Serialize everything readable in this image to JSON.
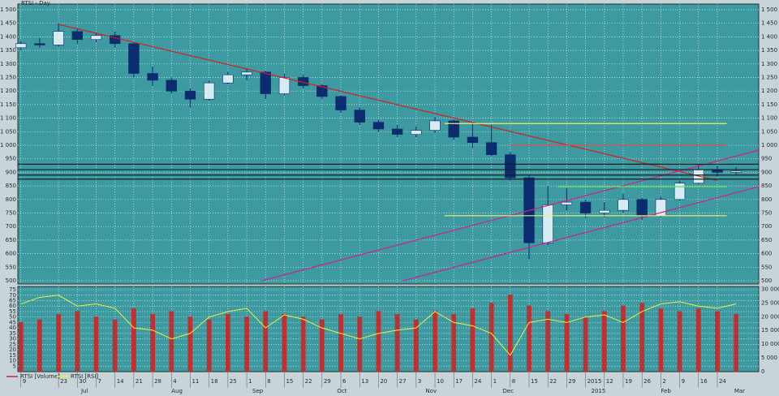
{
  "chart_data": [
    {
      "type": "candlestick",
      "title": "RTSI - Day",
      "x": [
        -2,
        -1,
        0,
        1,
        2,
        3,
        4,
        5,
        6,
        7,
        8,
        9,
        10,
        11,
        12,
        13,
        14,
        15,
        16,
        17,
        18,
        19,
        20,
        21,
        22,
        23,
        24,
        25,
        26,
        27,
        28,
        29,
        30,
        31,
        32,
        33,
        34,
        35,
        36
      ],
      "open": [
        1360,
        1375,
        1370,
        1420,
        1390,
        1405,
        1375,
        1265,
        1240,
        1200,
        1170,
        1230,
        1260,
        1270,
        1190,
        1250,
        1220,
        1180,
        1130,
        1085,
        1060,
        1040,
        1055,
        1090,
        1030,
        1010,
        965,
        880,
        640,
        780,
        790,
        750,
        760,
        800,
        740,
        800,
        860,
        910,
        900
      ],
      "high": [
        1385,
        1395,
        1450,
        1430,
        1415,
        1420,
        1380,
        1290,
        1250,
        1210,
        1240,
        1270,
        1285,
        1275,
        1265,
        1260,
        1225,
        1185,
        1140,
        1095,
        1075,
        1070,
        1105,
        1095,
        1080,
        1075,
        975,
        890,
        850,
        840,
        800,
        790,
        820,
        805,
        810,
        870,
        930,
        925,
        920
      ],
      "low": [
        1350,
        1360,
        1365,
        1375,
        1380,
        1360,
        1250,
        1220,
        1190,
        1140,
        1165,
        1225,
        1240,
        1170,
        1185,
        1210,
        1170,
        1120,
        1075,
        1050,
        1030,
        1030,
        1045,
        1020,
        990,
        960,
        870,
        580,
        630,
        760,
        730,
        735,
        750,
        725,
        735,
        795,
        855,
        885,
        890
      ],
      "close": [
        1375,
        1370,
        1420,
        1390,
        1405,
        1375,
        1265,
        1240,
        1200,
        1170,
        1230,
        1260,
        1270,
        1190,
        1250,
        1220,
        1180,
        1130,
        1085,
        1060,
        1040,
        1055,
        1090,
        1030,
        1010,
        965,
        880,
        640,
        780,
        790,
        750,
        760,
        800,
        740,
        800,
        860,
        910,
        900,
        905
      ],
      "up_color": "#d6ecf2",
      "down_color": "#0b2c6e",
      "xlim": [
        -2.16,
        37.2
      ],
      "ylim": [
        488,
        1521
      ],
      "yticks": [
        500,
        550,
        600,
        650,
        700,
        750,
        800,
        850,
        900,
        950,
        {
          "value": 1000,
          "label": "1 000"
        },
        {
          "value": 1050,
          "label": "1 050"
        },
        {
          "value": 1100,
          "label": "1 100"
        },
        {
          "value": 1150,
          "label": "1 150"
        },
        {
          "value": 1200,
          "label": "1 200"
        },
        {
          "value": 1250,
          "label": "1 250"
        },
        {
          "value": 1300,
          "label": "1 300"
        },
        {
          "value": 1350,
          "label": "1 350"
        },
        {
          "value": 1400,
          "label": "1 400"
        },
        {
          "value": 1450,
          "label": "1 450"
        },
        {
          "value": 1500,
          "label": "1 500"
        }
      ],
      "lines": [
        {
          "x": [
            0,
            35
          ],
          "y": [
            1446,
            870
          ],
          "color": "#d42020"
        },
        {
          "x": [
            10.8,
            37.2
          ],
          "y": [
            500,
            982
          ],
          "color": "#d0208a"
        },
        {
          "x": [
            18.3,
            37.2
          ],
          "y": [
            500,
            847
          ],
          "color": "#d0208a"
        },
        {
          "x": [
            20.5,
            35.5
          ],
          "y": [
            1080,
            1080
          ],
          "color": "#f0f060"
        },
        {
          "x": [
            20.5,
            35.5
          ],
          "y": [
            740,
            740
          ],
          "color": "#f0f060"
        },
        {
          "x": [
            32.5,
            35.5
          ],
          "y": [
            930,
            930
          ],
          "color": "#f0f060"
        },
        {
          "x": [
            26.5,
            35.5
          ],
          "y": [
            847,
            847
          ],
          "color": "#60e060"
        },
        {
          "x": [
            24,
            35.5
          ],
          "y": [
            1000,
            1000
          ],
          "color": "#e05050"
        },
        {
          "x": [
            -2.16,
            37.2
          ],
          "y": [
            930,
            930
          ],
          "color": "#102020"
        },
        {
          "x": [
            -2.16,
            37.2
          ],
          "y": [
            910,
            910
          ],
          "color": "#102020"
        },
        {
          "x": [
            -2.16,
            37.2
          ],
          "y": [
            890,
            890
          ],
          "color": "#102020"
        },
        {
          "x": [
            -2.16,
            37.2
          ],
          "y": [
            875,
            875
          ],
          "color": "#102020"
        }
      ]
    },
    {
      "type": "indicator",
      "x": [
        -2,
        -1,
        0,
        1,
        2,
        3,
        4,
        5,
        6,
        7,
        8,
        9,
        10,
        11,
        12,
        13,
        14,
        15,
        16,
        17,
        18,
        19,
        20,
        21,
        22,
        23,
        24,
        25,
        26,
        27,
        28,
        29,
        30,
        31,
        32,
        33,
        34,
        35,
        36
      ],
      "series": [
        {
          "name": "RTSI [Volume]",
          "color": "#c03030",
          "axis": "y2",
          "values": [
            18000,
            19000,
            21000,
            22000,
            20000,
            19000,
            23000,
            21000,
            22000,
            20000,
            19000,
            21000,
            20000,
            22000,
            21000,
            20000,
            19000,
            21000,
            20000,
            22000,
            21000,
            19000,
            22000,
            21000,
            23000,
            25000,
            28000,
            24000,
            22000,
            21000,
            20000,
            22000,
            24000,
            25000,
            23000,
            22000,
            23000,
            22000,
            21000
          ]
        },
        {
          "name": "RTSI [RSI]",
          "color": "#f0f040",
          "values": [
            62,
            68,
            70,
            60,
            62,
            58,
            40,
            38,
            30,
            35,
            50,
            55,
            58,
            40,
            52,
            48,
            40,
            35,
            30,
            35,
            38,
            40,
            55,
            45,
            42,
            35,
            15,
            45,
            48,
            45,
            50,
            52,
            45,
            55,
            62,
            64,
            60,
            58,
            62
          ]
        }
      ],
      "xlim": [
        -2.16,
        37.2
      ],
      "ylim": [
        0,
        78
      ],
      "y2lim": [
        0,
        31000
      ],
      "yticks": [
        5,
        10,
        15,
        20,
        25,
        30,
        35,
        40,
        45,
        50,
        55,
        60,
        65,
        70,
        75
      ],
      "y2ticks": [
        0,
        {
          "value": 5000,
          "label": "5 000"
        },
        {
          "value": 10000,
          "label": "10 000"
        },
        {
          "value": 15000,
          "label": "15 000"
        },
        {
          "value": 20000,
          "label": "20 000"
        },
        {
          "value": 25000,
          "label": "25 000"
        },
        {
          "value": 30000,
          "label": "30 000"
        }
      ],
      "xticks": [
        {
          "value": -2,
          "label": "9"
        },
        {
          "value": 0,
          "label": "23"
        },
        {
          "value": 1,
          "label": "30"
        },
        {
          "value": 2,
          "label": "7"
        },
        {
          "value": 3,
          "label": "14"
        },
        {
          "value": 4,
          "label": "21"
        },
        {
          "value": 5,
          "label": "28"
        },
        {
          "value": 6,
          "label": "4"
        },
        {
          "value": 7,
          "label": "11"
        },
        {
          "value": 8,
          "label": "18"
        },
        {
          "value": 9,
          "label": "25"
        },
        {
          "value": 10,
          "label": "1"
        },
        {
          "value": 11,
          "label": "8"
        },
        {
          "value": 12,
          "label": "15"
        },
        {
          "value": 13,
          "label": "22"
        },
        {
          "value": 14,
          "label": "29"
        },
        {
          "value": 15,
          "label": "6"
        },
        {
          "value": 16,
          "label": "13"
        },
        {
          "value": 17,
          "label": "20"
        },
        {
          "value": 18,
          "label": "27"
        },
        {
          "value": 19,
          "label": "3"
        },
        {
          "value": 20,
          "label": "10"
        },
        {
          "value": 21,
          "label": "17"
        },
        {
          "value": 22,
          "label": "24"
        },
        {
          "value": 23,
          "label": "1"
        },
        {
          "value": 24,
          "label": "8"
        },
        {
          "value": 25,
          "label": "15"
        },
        {
          "value": 26,
          "label": "22"
        },
        {
          "value": 27,
          "label": "29"
        },
        {
          "value": 28,
          "label": "2015"
        },
        {
          "value": 29,
          "label": "12"
        },
        {
          "value": 30,
          "label": "19"
        },
        {
          "value": 31,
          "label": "26"
        },
        {
          "value": 32,
          "label": "2"
        },
        {
          "value": 33,
          "label": "9"
        },
        {
          "value": 34,
          "label": "16"
        },
        {
          "value": 35,
          "label": "24"
        }
      ],
      "month_labels": [
        {
          "value": 1.2,
          "label": "Jul"
        },
        {
          "value": 6,
          "label": "Aug"
        },
        {
          "value": 10.3,
          "label": "Sep"
        },
        {
          "value": 14.8,
          "label": "Oct"
        },
        {
          "value": 19.5,
          "label": "Nov"
        },
        {
          "value": 23.6,
          "label": "Dec"
        },
        {
          "value": 28.3,
          "label": "2015"
        },
        {
          "value": 32,
          "label": "Feb"
        },
        {
          "value": 35.9,
          "label": "Mar"
        }
      ]
    }
  ]
}
